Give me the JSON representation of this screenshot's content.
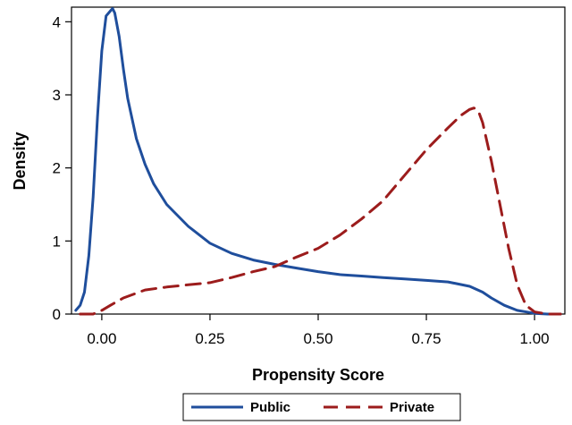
{
  "chart_data": {
    "type": "line",
    "title": "",
    "xlabel": "Propensity Score",
    "ylabel": "Density",
    "xlim": [
      -0.07,
      1.07
    ],
    "ylim": [
      0,
      4.2
    ],
    "xticks": [
      0.0,
      0.25,
      0.5,
      0.75,
      1.0
    ],
    "xtick_labels": [
      "0.00",
      "0.25",
      "0.50",
      "0.75",
      "1.00"
    ],
    "yticks": [
      0,
      1,
      2,
      3,
      4
    ],
    "ytick_labels": [
      "0",
      "1",
      "2",
      "3",
      "4"
    ],
    "grid": false,
    "legend_position": "bottom-center",
    "series": [
      {
        "name": "Public",
        "color": "#1f4e9c",
        "dash": "solid",
        "x": [
          -0.06,
          -0.05,
          -0.04,
          -0.03,
          -0.02,
          -0.01,
          0.0,
          0.01,
          0.02,
          0.025,
          0.03,
          0.04,
          0.05,
          0.06,
          0.08,
          0.1,
          0.12,
          0.15,
          0.2,
          0.25,
          0.3,
          0.35,
          0.4,
          0.45,
          0.5,
          0.55,
          0.6,
          0.65,
          0.7,
          0.75,
          0.8,
          0.85,
          0.88,
          0.9,
          0.93,
          0.96,
          1.0,
          1.03,
          1.06
        ],
        "y": [
          0.05,
          0.12,
          0.3,
          0.8,
          1.6,
          2.7,
          3.6,
          4.08,
          4.15,
          4.18,
          4.12,
          3.8,
          3.35,
          2.95,
          2.4,
          2.05,
          1.78,
          1.5,
          1.2,
          0.97,
          0.83,
          0.74,
          0.68,
          0.63,
          0.58,
          0.54,
          0.52,
          0.5,
          0.48,
          0.46,
          0.44,
          0.38,
          0.3,
          0.22,
          0.12,
          0.05,
          0.01,
          0.0,
          0.0
        ]
      },
      {
        "name": "Private",
        "color": "#9c1c1c",
        "dash": "dashed",
        "x": [
          -0.05,
          -0.02,
          0.0,
          0.02,
          0.05,
          0.1,
          0.15,
          0.2,
          0.25,
          0.3,
          0.35,
          0.4,
          0.45,
          0.5,
          0.55,
          0.6,
          0.65,
          0.7,
          0.75,
          0.8,
          0.83,
          0.85,
          0.86,
          0.87,
          0.88,
          0.9,
          0.92,
          0.94,
          0.96,
          0.98,
          1.0,
          1.03,
          1.06
        ],
        "y": [
          0.0,
          0.0,
          0.05,
          0.12,
          0.22,
          0.33,
          0.37,
          0.4,
          0.43,
          0.5,
          0.58,
          0.65,
          0.78,
          0.9,
          1.08,
          1.3,
          1.55,
          1.9,
          2.25,
          2.55,
          2.72,
          2.8,
          2.82,
          2.78,
          2.62,
          2.1,
          1.5,
          0.9,
          0.4,
          0.12,
          0.03,
          0.0,
          0.0
        ]
      }
    ]
  }
}
